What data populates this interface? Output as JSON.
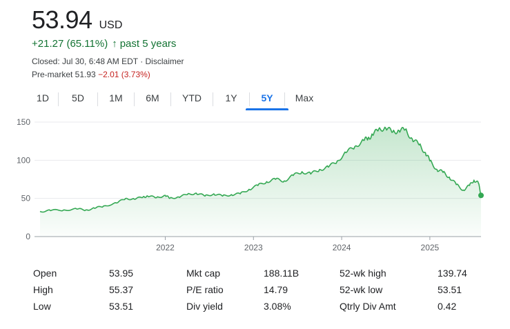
{
  "quote": {
    "price": "53.94",
    "currency": "USD",
    "change": "+21.27 (65.11%)",
    "change_arrow": "↑",
    "change_period": "past 5 years",
    "closed": "Closed: Jul 30, 6:48 AM EDT · Disclaimer",
    "premarket_label": "Pre-market 51.93",
    "premarket_change": "−2.01 (3.73%)"
  },
  "tabs": [
    "1D",
    "5D",
    "1M",
    "6M",
    "YTD",
    "1Y",
    "5Y",
    "Max"
  ],
  "active_tab": "5Y",
  "colors": {
    "line": "#34a853",
    "positive": "#137333",
    "negative": "#c5221f",
    "active": "#1a73e8"
  },
  "chart_data": {
    "type": "area",
    "x_labels": [
      "2022",
      "2023",
      "2024",
      "2025"
    ],
    "y_ticks": [
      0,
      50,
      100,
      150
    ],
    "ylim": [
      0,
      150
    ],
    "x_range": [
      2020.58,
      2025.58
    ],
    "series": [
      {
        "x": [
          2020.58,
          2020.7,
          2020.85,
          2021.0,
          2021.1,
          2021.2,
          2021.3,
          2021.45,
          2021.55,
          2021.65,
          2021.75,
          2021.8,
          2021.9,
          2022.0,
          2022.05,
          2022.15,
          2022.25,
          2022.35,
          2022.45,
          2022.55,
          2022.65,
          2022.75,
          2022.85,
          2022.95,
          2023.05,
          2023.15,
          2023.25,
          2023.35,
          2023.45,
          2023.55,
          2023.65,
          2023.75,
          2023.85,
          2023.95,
          2024.05,
          2024.15,
          2024.25,
          2024.3,
          2024.35,
          2024.42,
          2024.5,
          2024.58,
          2024.65,
          2024.72,
          2024.8,
          2024.88,
          2024.95,
          2025.0,
          2025.08,
          2025.15,
          2025.22,
          2025.3,
          2025.38,
          2025.45,
          2025.5,
          2025.55,
          2025.58
        ],
        "y": [
          33,
          34,
          35,
          36,
          35,
          37,
          40,
          44,
          50,
          49,
          52,
          53,
          51,
          54,
          50,
          52,
          55,
          57,
          53,
          56,
          53,
          55,
          56,
          62,
          67,
          72,
          75,
          73,
          80,
          85,
          82,
          88,
          91,
          99,
          110,
          118,
          126,
          129,
          133,
          141,
          142,
          137,
          139,
          140,
          128,
          120,
          110,
          99,
          88,
          84,
          78,
          68,
          61,
          67,
          74,
          70,
          55
        ]
      }
    ],
    "last_point": 53.94
  },
  "stats": [
    [
      {
        "label": "Open",
        "value": "53.95"
      },
      {
        "label": "Mkt cap",
        "value": "188.11B"
      },
      {
        "label": "52-wk high",
        "value": "139.74"
      }
    ],
    [
      {
        "label": "High",
        "value": "55.37"
      },
      {
        "label": "P/E ratio",
        "value": "14.79"
      },
      {
        "label": "52-wk low",
        "value": "53.51"
      }
    ],
    [
      {
        "label": "Low",
        "value": "53.51"
      },
      {
        "label": "Div yield",
        "value": "3.08%"
      },
      {
        "label": "Qtrly Div Amt",
        "value": "0.42"
      }
    ]
  ]
}
